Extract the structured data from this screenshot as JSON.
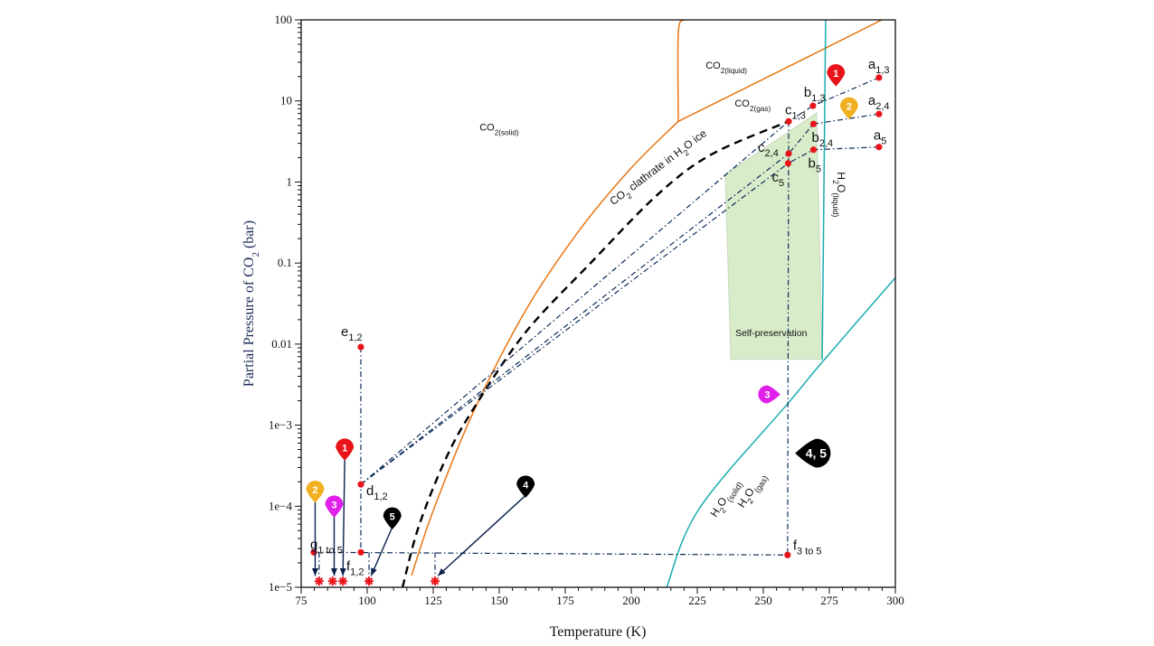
{
  "chart_data": {
    "type": "line",
    "xlabel": "Temperature (K)",
    "ylabel": {
      "main": "Partial Pressure of CO",
      "sub": "2",
      "tail": " (bar)"
    },
    "xlim": [
      75,
      300
    ],
    "ylim": [
      1e-05,
      100
    ],
    "yscale": "log",
    "grid": false,
    "x_ticks": [
      75,
      100,
      125,
      150,
      175,
      200,
      225,
      250,
      275,
      300
    ],
    "y_ticks": [
      {
        "v": 100,
        "label": "100"
      },
      {
        "v": 10,
        "label": "10"
      },
      {
        "v": 1,
        "label": "1"
      },
      {
        "v": 0.1,
        "label": "0.1"
      },
      {
        "v": 0.01,
        "label": "0.01"
      },
      {
        "v": 0.001,
        "label": "1e−3"
      },
      {
        "v": 0.0001,
        "label": "1e−4"
      },
      {
        "v": 1e-05,
        "label": "1e−5"
      }
    ],
    "colors": {
      "co2_boundary": "#e87511",
      "h2o_boundary": "#1aacb0",
      "clathrate": "#000000",
      "path": "#0a2a5a",
      "point": "#e8141a",
      "self_preservation": "#d8ecc9"
    },
    "curves": [
      {
        "id": "co2-solid-gas",
        "color": "co2_boundary",
        "points": [
          [
            116.8,
            1.4e-05
          ],
          [
            125,
            8.8e-05
          ],
          [
            140,
            0.0014
          ],
          [
            160,
            0.026
          ],
          [
            180,
            0.245
          ],
          [
            200,
            1.49
          ],
          [
            217.8,
            5.6
          ]
        ]
      },
      {
        "id": "co2-solid-liquid",
        "color": "co2_boundary",
        "points": [
          [
            217.8,
            5.6
          ],
          [
            217.8,
            69
          ],
          [
            219.9,
            100
          ]
        ]
      },
      {
        "id": "co2-liquid-gas",
        "color": "co2_boundary",
        "points": [
          [
            217.8,
            5.6
          ],
          [
            252,
            20
          ],
          [
            294.9,
            100
          ]
        ]
      },
      {
        "id": "h2o-solid-liquid",
        "color": "h2o_boundary",
        "points": [
          [
            272.3,
            0.0065
          ],
          [
            273.6,
            100
          ]
        ]
      },
      {
        "id": "h2o-solid-gas",
        "color": "h2o_boundary",
        "points": [
          [
            213.4,
            1e-05
          ],
          [
            225.7,
            9.3e-05
          ],
          [
            259.6,
            0.0019
          ],
          [
            272.5,
            0.0061
          ],
          [
            300,
            0.066
          ]
        ]
      },
      {
        "id": "co2-clathrate",
        "color": "clathrate",
        "dashed": true,
        "points": [
          [
            113.4,
            1e-05
          ],
          [
            119.5,
            5.6e-05
          ],
          [
            130,
            0.0004
          ],
          [
            140.8,
            0.0017
          ],
          [
            160,
            0.014
          ],
          [
            184.6,
            0.1
          ],
          [
            210,
            0.7
          ],
          [
            230.5,
            2.2
          ],
          [
            259.6,
            5.6
          ]
        ]
      }
    ],
    "self_preservation_region": [
      [
        235.6,
        1.24
      ],
      [
        270.2,
        7.1
      ],
      [
        272.3,
        0.0065
      ],
      [
        237.7,
        0.0065
      ]
    ],
    "points": [
      {
        "main": "a",
        "sub": "1,3",
        "x": 293.8,
        "y": 19.4,
        "lx": -12,
        "ly": -10
      },
      {
        "main": "b",
        "sub": "1,3",
        "x": 268.8,
        "y": 8.7,
        "lx": -10,
        "ly": -10
      },
      {
        "main": "c",
        "sub": "1,3",
        "x": 259.6,
        "y": 5.6,
        "lx": -4,
        "ly": -8
      },
      {
        "main": "a",
        "sub": "2,4",
        "x": 293.8,
        "y": 6.9,
        "lx": -12,
        "ly": -10
      },
      {
        "main": "b",
        "sub": "2,4",
        "x": 269,
        "y": 5.2,
        "lx": -2,
        "ly": 20
      },
      {
        "main": "c",
        "sub": "2,4",
        "x": 259.6,
        "y": 2.24,
        "lx": -34,
        "ly": -2
      },
      {
        "main": "a",
        "sub": "5",
        "x": 293.8,
        "y": 2.7,
        "lx": -6,
        "ly": -8
      },
      {
        "main": "b",
        "sub": "5",
        "x": 269,
        "y": 2.5,
        "lx": -6,
        "ly": 20
      },
      {
        "main": "c",
        "sub": "5",
        "x": 259.4,
        "y": 1.7,
        "lx": -18,
        "ly": 20
      },
      {
        "main": "e",
        "sub": "1,2",
        "x": 97.6,
        "y": 0.0092,
        "lx": -22,
        "ly": -12
      },
      {
        "main": "d",
        "sub": "1,2",
        "x": 97.6,
        "y": 0.000186,
        "lx": 6,
        "ly": 12
      },
      {
        "main": "f",
        "sub": "1,2",
        "x": 97.6,
        "y": 2.7e-05,
        "lx": -16,
        "ly": 20
      },
      {
        "main": "g",
        "sub": "1 to 5",
        "x": 79.8,
        "y": 2.7e-05,
        "lx": -4,
        "ly": -4
      },
      {
        "main": "f",
        "sub": "3 to 5",
        "x": 259.2,
        "y": 2.5e-05,
        "lx": 6,
        "ly": -6
      }
    ],
    "paths": [
      [
        [
          293.8,
          19.4
        ],
        [
          268.8,
          8.7
        ],
        [
          259.6,
          5.6
        ]
      ],
      [
        [
          293.8,
          6.9
        ],
        [
          269,
          5.2
        ],
        [
          259.6,
          2.24
        ]
      ],
      [
        [
          293.8,
          2.7
        ],
        [
          269,
          2.5
        ],
        [
          259.4,
          1.7
        ]
      ],
      [
        [
          97.6,
          0.000186
        ],
        [
          259.6,
          5.6
        ]
      ],
      [
        [
          97.6,
          0.000186
        ],
        [
          259.6,
          2.24
        ]
      ],
      [
        [
          97.6,
          0.000186
        ],
        [
          259.4,
          1.7
        ]
      ],
      [
        [
          97.6,
          0.0092
        ],
        [
          97.6,
          2.7e-05
        ]
      ],
      [
        [
          259.6,
          5.6
        ],
        [
          259.2,
          2.5e-05
        ]
      ],
      [
        [
          79.8,
          2.7e-05
        ],
        [
          259.2,
          2.5e-05
        ]
      ],
      [
        [
          81.8,
          2.7e-05
        ],
        [
          81.8,
          1.3e-05
        ]
      ],
      [
        [
          100.7,
          2.7e-05
        ],
        [
          100.7,
          1.3e-05
        ]
      ],
      [
        [
          125.7,
          2.7e-05
        ],
        [
          125.7,
          1.3e-05
        ]
      ]
    ],
    "end_markers": [
      [
        81.8,
        1.19e-05
      ],
      [
        86.9,
        1.19e-05
      ],
      [
        90.8,
        1.19e-05
      ],
      [
        100.7,
        1.19e-05
      ],
      [
        125.7,
        1.19e-05
      ]
    ],
    "region_labels": [
      {
        "main": "CO",
        "sub": "2(solid)",
        "x": 150,
        "y": 4.3,
        "rot": 0,
        "size": 11
      },
      {
        "main": "CO",
        "sub": "2(liquid)",
        "x": 236,
        "y": 25,
        "rot": 0,
        "size": 11
      },
      {
        "main": "CO",
        "sub": "2(gas)",
        "x": 246,
        "y": 8.5,
        "rot": 0,
        "size": 11
      },
      {
        "main": "CO",
        "sub": "2",
        "tail": " clathrate in H",
        "sub2": "2",
        "tail2": "O ice",
        "x": 211,
        "y": 1.4,
        "rot": -37,
        "size": 12
      },
      {
        "main": "H",
        "sub": "2",
        "tail": "O",
        "sub2": "(liquid)",
        "x": 278,
        "y": 0.7,
        "rot": 90,
        "size": 12
      },
      {
        "main": "Self-preservation",
        "x": 253,
        "y": 0.0125,
        "rot": 0,
        "size": 10.5
      },
      {
        "main": "H",
        "sub": "2",
        "tail": "O",
        "sub2": "(solid)",
        "x": 236.5,
        "y": 0.00012,
        "rot": -57,
        "size": 12
      },
      {
        "main": "H",
        "sub": "2",
        "tail": "O",
        "sub2": "(gas)",
        "x": 246.5,
        "y": 0.00015,
        "rot": -57,
        "size": 12
      }
    ],
    "pins": [
      {
        "label": "1",
        "color": "#e8141a",
        "x": 277.5,
        "y": 22,
        "dir": "down"
      },
      {
        "label": "2",
        "color": "#f0b020",
        "x": 282.5,
        "y": 8.6,
        "dir": "down"
      },
      {
        "label": "1",
        "color": "#e8141a",
        "x": 91.5,
        "y": 0.00053,
        "dir": "down",
        "arrow_to": [
          90.8,
          1.25e-05
        ]
      },
      {
        "label": "2",
        "color": "#f0b020",
        "x": 80.3,
        "y": 0.00016,
        "dir": "down",
        "arrow_to": [
          80.3,
          1.25e-05
        ]
      },
      {
        "label": "3",
        "color": "#e020e8",
        "x": 87.5,
        "y": 0.000105,
        "dir": "down",
        "arrow_to": [
          87.5,
          1.25e-05
        ]
      },
      {
        "label": "5",
        "color": "#000000",
        "x": 109.5,
        "y": 7.5e-05,
        "dir": "down",
        "arrow_to": [
          101.5,
          1.25e-05
        ]
      },
      {
        "label": "4",
        "color": "#000000",
        "x": 160,
        "y": 0.000185,
        "dir": "down",
        "arrow_to": [
          126.8,
          1.25e-05
        ]
      },
      {
        "label": "3",
        "color": "#e020e8",
        "x": 251.5,
        "y": 0.0024,
        "dir": "right"
      },
      {
        "label": "4, 5",
        "color": "#000000",
        "x": 270,
        "y": 0.00045,
        "dir": "left"
      }
    ]
  }
}
